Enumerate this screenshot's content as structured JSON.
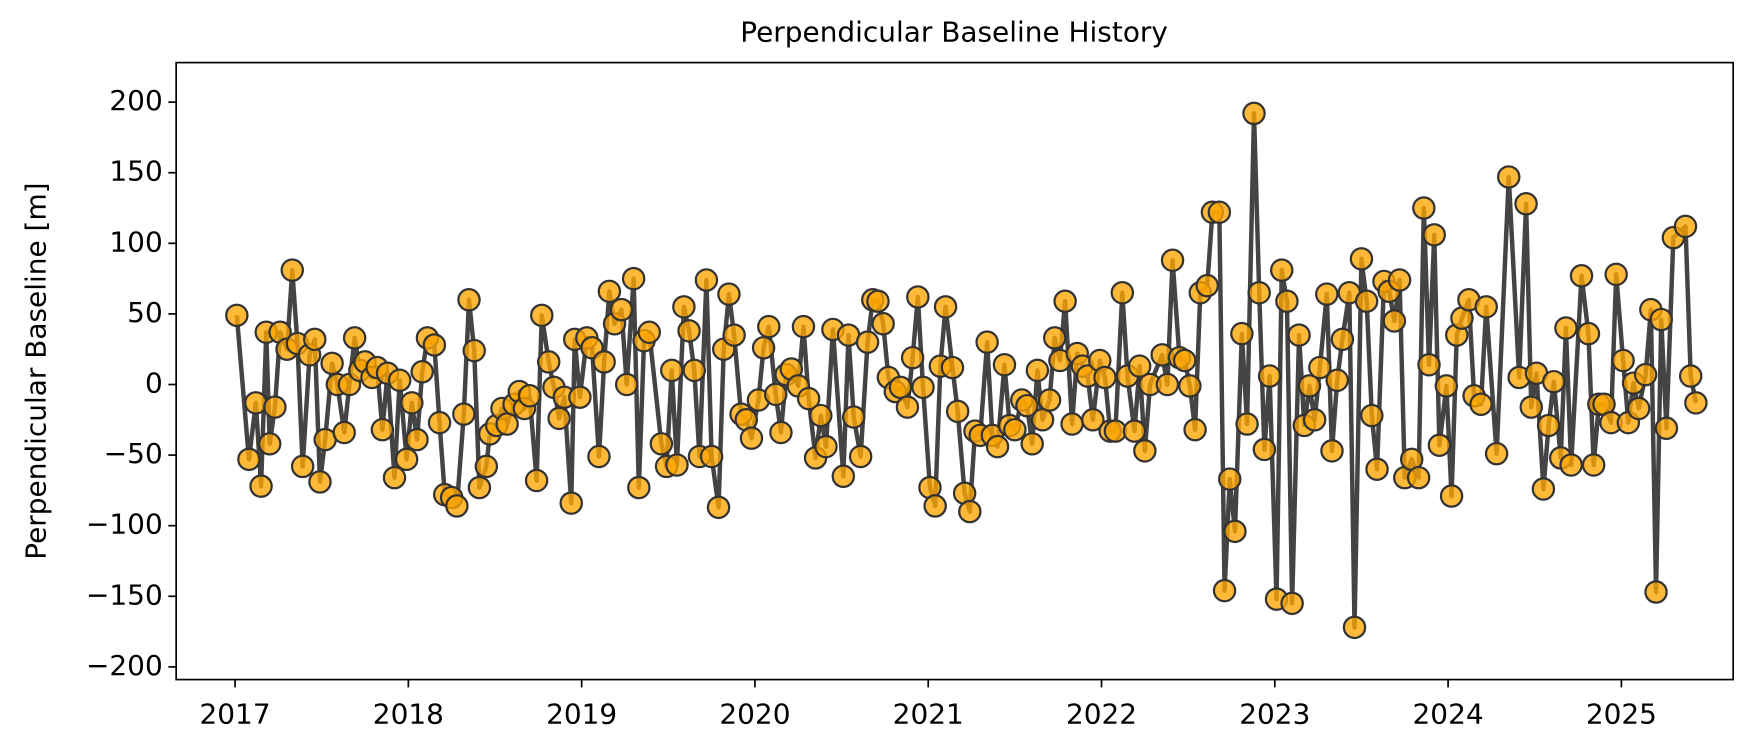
{
  "chart_data": {
    "type": "line",
    "title": "Perpendicular Baseline History",
    "ylabel": "Perpendicular Baseline [m]",
    "color": "#ffa500",
    "line_color": "#444444",
    "marker_edge": "#333333",
    "xlim": [
      2016.66,
      2025.645
    ],
    "xticks": [
      2017,
      2018,
      2019,
      2020,
      2021,
      2022,
      2023,
      2024,
      2025
    ],
    "ylim": [
      -209,
      228
    ],
    "yticks": [
      {
        "value": -200,
        "label": "−200"
      },
      {
        "value": -150,
        "label": "−150"
      },
      {
        "value": -100,
        "label": "−100"
      },
      {
        "value": -50,
        "label": "−50"
      },
      0,
      50,
      100,
      150,
      200
    ],
    "x": [
      2017.01,
      2017.08,
      2017.12,
      2017.15,
      2017.18,
      2017.2,
      2017.23,
      2017.26,
      2017.3,
      2017.33,
      2017.36,
      2017.39,
      2017.43,
      2017.46,
      2017.49,
      2017.52,
      2017.56,
      2017.59,
      2017.63,
      2017.66,
      2017.69,
      2017.72,
      2017.75,
      2017.79,
      2017.82,
      2017.85,
      2017.88,
      2017.92,
      2017.95,
      2017.99,
      2018.02,
      2018.05,
      2018.08,
      2018.11,
      2018.15,
      2018.18,
      2018.21,
      2018.25,
      2018.28,
      2018.32,
      2018.35,
      2018.38,
      2018.41,
      2018.45,
      2018.47,
      2018.51,
      2018.54,
      2018.57,
      2018.61,
      2018.64,
      2018.67,
      2018.7,
      2018.74,
      2018.77,
      2018.81,
      2018.84,
      2018.87,
      2018.9,
      2018.94,
      2018.96,
      2018.99,
      2019.03,
      2019.06,
      2019.1,
      2019.13,
      2019.16,
      2019.19,
      2019.23,
      2019.26,
      2019.3,
      2019.33,
      2019.36,
      2019.39,
      2019.46,
      2019.49,
      2019.52,
      2019.55,
      2019.59,
      2019.62,
      2019.65,
      2019.68,
      2019.72,
      2019.75,
      2019.79,
      2019.82,
      2019.85,
      2019.88,
      2019.92,
      2019.95,
      2019.98,
      2020.02,
      2020.05,
      2020.08,
      2020.12,
      2020.15,
      2020.18,
      2020.21,
      2020.25,
      2020.28,
      2020.31,
      2020.35,
      2020.38,
      2020.41,
      2020.45,
      2020.51,
      2020.54,
      2020.57,
      2020.61,
      2020.65,
      2020.68,
      2020.71,
      2020.74,
      2020.77,
      2020.81,
      2020.84,
      2020.88,
      2020.91,
      2020.94,
      2020.97,
      2021.01,
      2021.04,
      2021.07,
      2021.1,
      2021.14,
      2021.17,
      2021.21,
      2021.24,
      2021.27,
      2021.3,
      2021.34,
      2021.37,
      2021.4,
      2021.44,
      2021.47,
      2021.5,
      2021.54,
      2021.57,
      2021.6,
      2021.63,
      2021.66,
      2021.7,
      2021.73,
      2021.76,
      2021.79,
      2021.83,
      2021.86,
      2021.89,
      2021.92,
      2021.95,
      2021.99,
      2022.02,
      2022.05,
      2022.08,
      2022.12,
      2022.15,
      2022.19,
      2022.22,
      2022.25,
      2022.28,
      2022.35,
      2022.38,
      2022.41,
      2022.45,
      2022.48,
      2022.51,
      2022.54,
      2022.57,
      2022.61,
      2022.64,
      2022.68,
      2022.71,
      2022.74,
      2022.77,
      2022.81,
      2022.84,
      2022.88,
      2022.91,
      2022.94,
      2022.97,
      2023.01,
      2023.04,
      2023.07,
      2023.1,
      2023.14,
      2023.17,
      2023.2,
      2023.23,
      2023.26,
      2023.3,
      2023.33,
      2023.36,
      2023.39,
      2023.43,
      2023.46,
      2023.5,
      2023.53,
      2023.56,
      2023.59,
      2023.63,
      2023.66,
      2023.69,
      2023.72,
      2023.75,
      2023.79,
      2023.83,
      2023.86,
      2023.89,
      2023.92,
      2023.95,
      2023.99,
      2024.02,
      2024.05,
      2024.08,
      2024.12,
      2024.15,
      2024.19,
      2024.22,
      2024.28,
      2024.35,
      2024.41,
      2024.45,
      2024.48,
      2024.51,
      2024.55,
      2024.58,
      2024.61,
      2024.65,
      2024.68,
      2024.71,
      2024.77,
      2024.81,
      2024.84,
      2024.87,
      2024.9,
      2024.94,
      2024.97,
      2025.01,
      2025.04,
      2025.07,
      2025.1,
      2025.14,
      2025.17,
      2025.2,
      2025.23,
      2025.26,
      2025.3,
      2025.37,
      2025.4,
      2025.43
    ],
    "values": [
      49,
      -53,
      -13,
      -72,
      37,
      -42,
      -16,
      37,
      25,
      81,
      29,
      -58,
      21,
      32,
      -69,
      -39,
      15,
      0,
      -34,
      0,
      33,
      10,
      16,
      5,
      12,
      -32,
      8,
      -66,
      3,
      -53,
      -13,
      -39,
      9,
      33,
      28,
      -27,
      -78,
      -80,
      -86,
      -21,
      60,
      24,
      -73,
      -58,
      -35,
      -29,
      -17,
      -28,
      -14,
      -5,
      -17,
      -8,
      -68,
      49,
      16,
      -2,
      -24,
      -9,
      -84,
      32,
      -9,
      33,
      26,
      -51,
      16,
      66,
      43,
      53,
      0,
      75,
      -73,
      31,
      37,
      -42,
      -58,
      10,
      -57,
      55,
      38,
      10,
      -51,
      74,
      -51,
      -87,
      25,
      64,
      35,
      -21,
      -25,
      -38,
      -11,
      26,
      41,
      -7,
      -34,
      7,
      11,
      -1,
      41,
      -10,
      -52,
      -22,
      -44,
      39,
      -65,
      35,
      -23,
      -51,
      30,
      60,
      59,
      43,
      5,
      -5,
      -2,
      -16,
      19,
      62,
      -2,
      -73,
      -86,
      13,
      55,
      12,
      -19,
      -77,
      -90,
      -33,
      -36,
      30,
      -36,
      -44,
      14,
      -29,
      -32,
      -11,
      -15,
      -42,
      10,
      -25,
      -11,
      33,
      17,
      59,
      -28,
      22,
      13,
      6,
      -25,
      17,
      5,
      -33,
      -33,
      65,
      6,
      -33,
      13,
      -47,
      0,
      21,
      0,
      88,
      19,
      17,
      -1,
      -32,
      65,
      70,
      122,
      122,
      -146,
      -67,
      -104,
      36,
      -28,
      192,
      65,
      -46,
      6,
      -152,
      81,
      59,
      -155,
      35,
      -29,
      -1,
      -25,
      12,
      64,
      -47,
      3,
      32,
      65,
      -172,
      89,
      59,
      -22,
      -60,
      73,
      66,
      45,
      74,
      -66,
      -53,
      -66,
      125,
      14,
      106,
      -43,
      -1,
      -79,
      35,
      47,
      60,
      -8,
      -14,
      55,
      -49,
      147,
      5,
      128,
      -16,
      8,
      -74,
      -29,
      2,
      -52,
      40,
      -57,
      77,
      36,
      -57,
      -14,
      -14,
      -27,
      78,
      17,
      -27,
      1,
      -17,
      7,
      53,
      -147,
      46,
      -31,
      104,
      112,
      6,
      -13
    ]
  }
}
